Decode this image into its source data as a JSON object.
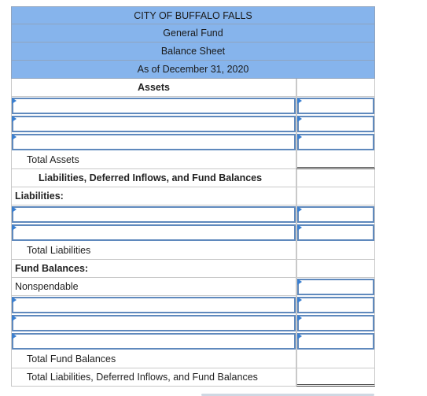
{
  "header": {
    "entity": "CITY OF BUFFALO FALLS",
    "fund": "General Fund",
    "statement": "Balance Sheet",
    "date": "As of December 31, 2020"
  },
  "sections": {
    "assets_heading": "Assets",
    "total_assets": "Total Assets",
    "liab_heading": "Liabilities, Deferred Inflows, and Fund Balances",
    "liabilities_label": "Liabilities:",
    "total_liabilities": "Total Liabilities",
    "fund_balances_label": "Fund Balances:",
    "nonspendable": "Nonspendable",
    "total_fund_balances": "Total Fund Balances",
    "total_liab_def_fund": "Total Liabilities, Deferred Inflows, and Fund Balances"
  }
}
